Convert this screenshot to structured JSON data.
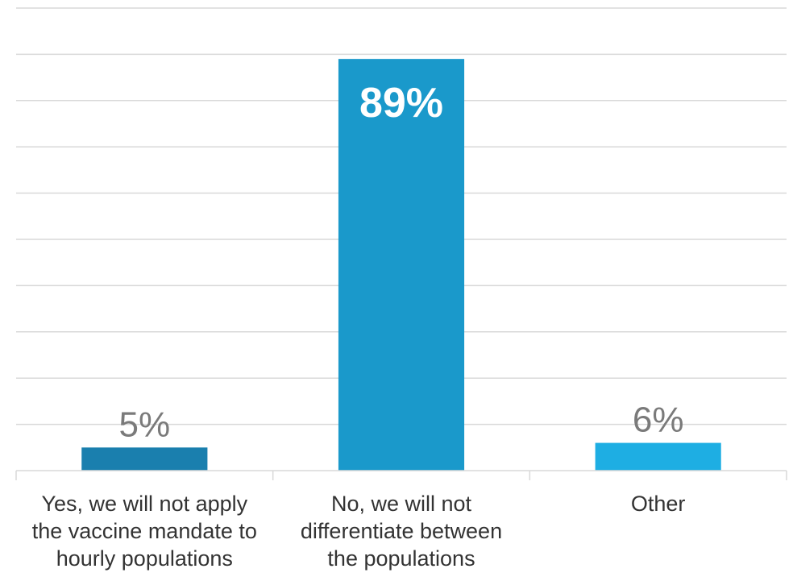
{
  "chart_data": {
    "type": "bar",
    "categories": [
      [
        "Yes, we will not apply",
        "the vaccine mandate to",
        "hourly populations"
      ],
      [
        "No, we will not",
        "differentiate between",
        "the populations"
      ],
      [
        "Other"
      ]
    ],
    "values": [
      5,
      89,
      6
    ],
    "data_labels": [
      "5%",
      "89%",
      "6%"
    ],
    "colors": [
      "#1a7fae",
      "#1a99cb",
      "#1eaee3"
    ],
    "label_styles": [
      "outside",
      "inside",
      "outside"
    ],
    "ylim": [
      0,
      100
    ],
    "grid": true,
    "legend": "none",
    "title": "",
    "xlabel": "",
    "ylabel": ""
  }
}
